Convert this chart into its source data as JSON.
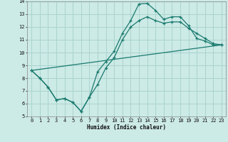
{
  "xlabel": "Humidex (Indice chaleur)",
  "bg_color": "#cceae6",
  "grid_color": "#aad4cf",
  "line_color": "#1a7a6e",
  "xlim": [
    -0.5,
    23.5
  ],
  "ylim": [
    5,
    14
  ],
  "xticks": [
    0,
    1,
    2,
    3,
    4,
    5,
    6,
    7,
    8,
    9,
    10,
    11,
    12,
    13,
    14,
    15,
    16,
    17,
    18,
    19,
    20,
    21,
    22,
    23
  ],
  "yticks": [
    5,
    6,
    7,
    8,
    9,
    10,
    11,
    12,
    13,
    14
  ],
  "line1_x": [
    0,
    1,
    2,
    3,
    4,
    5,
    6,
    7,
    8,
    9,
    10,
    11,
    12,
    13,
    14,
    15,
    16,
    17,
    18,
    19,
    20,
    21,
    22,
    23
  ],
  "line1_y": [
    8.6,
    8.0,
    7.3,
    6.3,
    6.4,
    6.1,
    5.4,
    6.5,
    8.5,
    9.3,
    10.1,
    11.5,
    12.5,
    13.8,
    13.85,
    13.3,
    12.6,
    12.8,
    12.8,
    12.1,
    11.1,
    10.9,
    10.6,
    10.6
  ],
  "line2_x": [
    0,
    1,
    2,
    3,
    4,
    5,
    6,
    7,
    8,
    9,
    10,
    11,
    12,
    13,
    14,
    15,
    16,
    17,
    18,
    19,
    20,
    21,
    22,
    23
  ],
  "line2_y": [
    8.6,
    8.0,
    7.3,
    6.3,
    6.4,
    6.1,
    5.4,
    6.5,
    7.5,
    8.8,
    9.6,
    11.0,
    12.0,
    12.5,
    12.8,
    12.5,
    12.3,
    12.4,
    12.4,
    11.9,
    11.5,
    11.1,
    10.7,
    10.6
  ],
  "line3_x": [
    0,
    23
  ],
  "line3_y": [
    8.6,
    10.6
  ]
}
